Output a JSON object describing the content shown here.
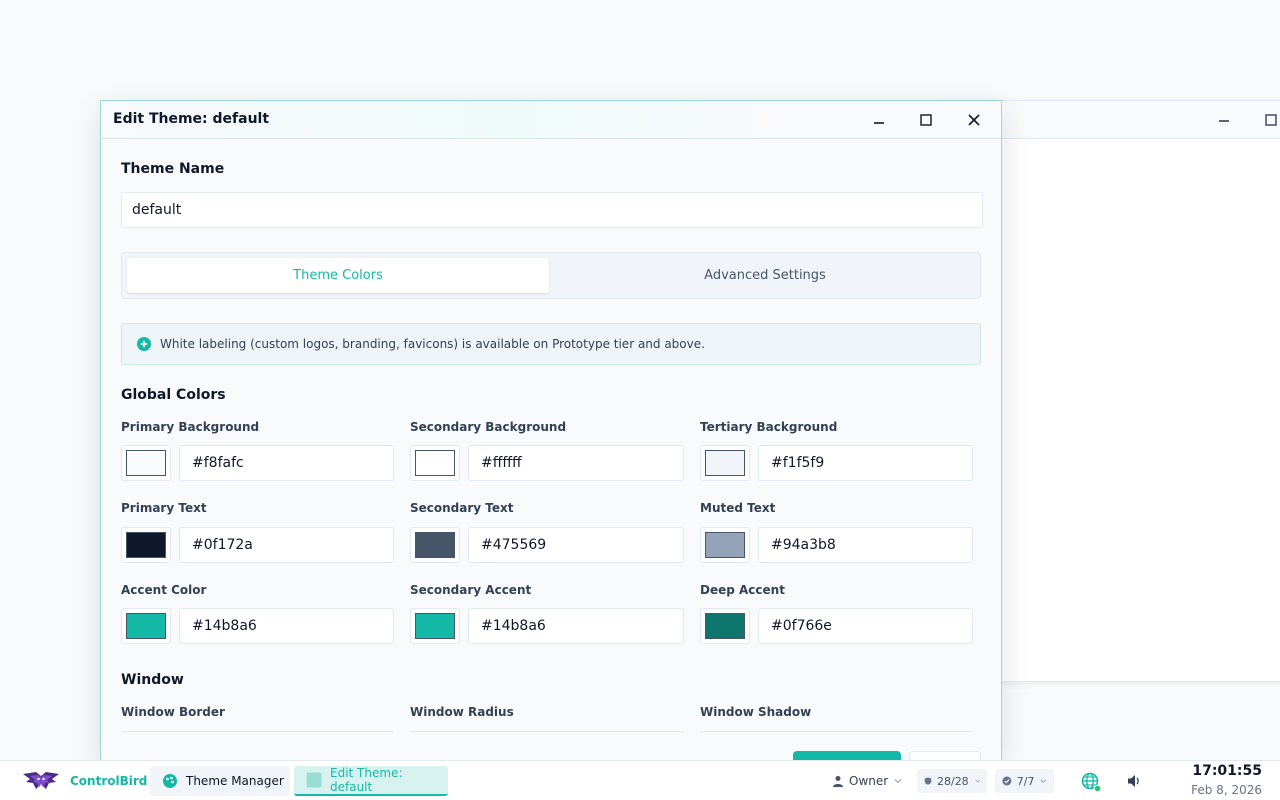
{
  "dialog": {
    "title": "Edit Theme: default",
    "theme_name_label": "Theme Name",
    "theme_name_value": "default",
    "tabs": [
      {
        "label": "Theme Colors",
        "active": true
      },
      {
        "label": "Advanced Settings",
        "active": false
      }
    ],
    "info_text": "White labeling (custom logos, branding, favicons) is available on Prototype tier and above.",
    "global_colors": {
      "heading": "Global Colors",
      "fields": [
        {
          "label": "Primary Background",
          "value": "#f8fafc"
        },
        {
          "label": "Secondary Background",
          "value": "#ffffff"
        },
        {
          "label": "Tertiary Background",
          "value": "#f1f5f9"
        },
        {
          "label": "Primary Text",
          "value": "#0f172a"
        },
        {
          "label": "Secondary Text",
          "value": "#475569"
        },
        {
          "label": "Muted Text",
          "value": "#94a3b8"
        },
        {
          "label": "Accent Color",
          "value": "#14b8a6"
        },
        {
          "label": "Secondary Accent",
          "value": "#14b8a6"
        },
        {
          "label": "Deep Accent",
          "value": "#0f766e"
        }
      ]
    },
    "window_section": {
      "heading": "Window",
      "fields": [
        {
          "label": "Window Border"
        },
        {
          "label": "Window Radius"
        },
        {
          "label": "Window Shadow"
        }
      ]
    }
  },
  "taskbar": {
    "brand": "ControlBird",
    "tasks": [
      {
        "label": "Theme Manager",
        "active": false
      },
      {
        "label": "Edit Theme: default",
        "active": true
      }
    ],
    "user": "Owner",
    "security_count": "28/28",
    "checks_count": "7/7",
    "time": "17:01:55",
    "date": "Feb 8, 2026"
  },
  "colors": {
    "accent": "#14b8a6",
    "deep_accent": "#0f766e",
    "text": "#0f172a"
  }
}
